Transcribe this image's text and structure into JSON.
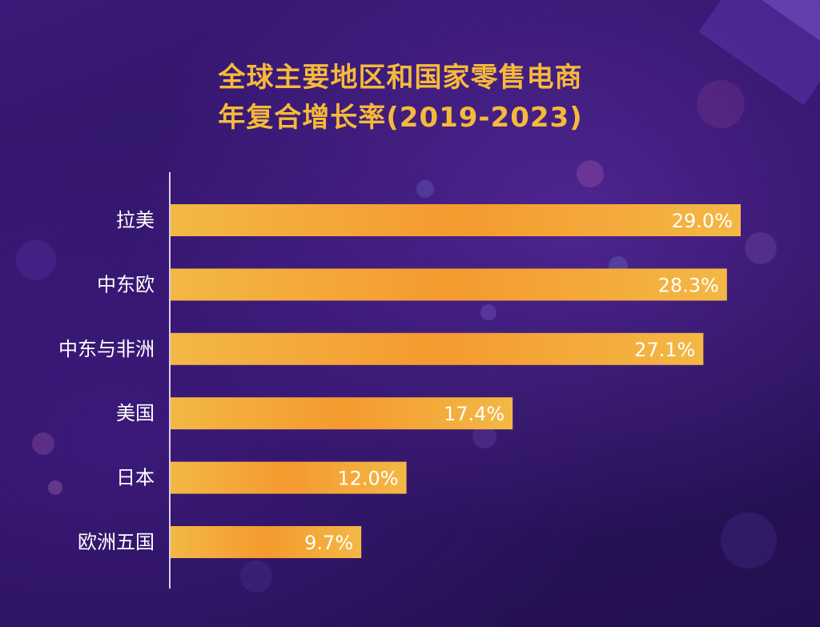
{
  "chart_data": {
    "type": "bar",
    "orientation": "horizontal",
    "title": [
      "全球主要地区和国家零售电商",
      "年复合增长率(2019-2023)"
    ],
    "categories": [
      "拉美",
      "中东欧",
      "中东与非洲",
      "美国",
      "日本",
      "欧洲五国"
    ],
    "values": [
      29.0,
      28.3,
      27.1,
      17.4,
      12.0,
      9.7
    ],
    "value_labels": [
      "29.0%",
      "28.3%",
      "27.1%",
      "17.4%",
      "12.0%",
      "9.7%"
    ],
    "unit": "%",
    "xlim": [
      0,
      29.0
    ],
    "grid": false,
    "legend": "none",
    "colors": {
      "bar_edge": "#f3b845",
      "bar_center": "#f49a2e",
      "title": "#f6b93b",
      "label": "#ffffff",
      "axis": "#d8d0ea",
      "background": "#2c1262"
    }
  }
}
